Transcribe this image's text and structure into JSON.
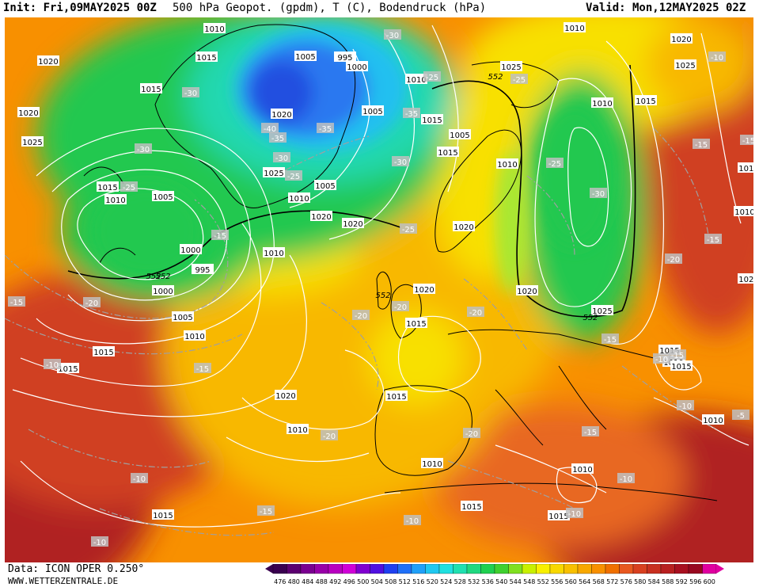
{
  "header": {
    "init": "Init: Fri,09MAY2025 00Z",
    "title": "500 hPa Geopot. (gpdm), T (C), Bodendruck (hPa)",
    "valid": "Valid: Mon,12MAY2025 02Z"
  },
  "footer": {
    "data_source": "Data: ICON OPER 0.250°",
    "website": "WWW.WETTERZENTRALE.DE"
  },
  "legend": {
    "values": [
      "476",
      "480",
      "484",
      "488",
      "492",
      "496",
      "500",
      "504",
      "508",
      "512",
      "516",
      "520",
      "524",
      "528",
      "532",
      "536",
      "540",
      "544",
      "548",
      "552",
      "556",
      "560",
      "564",
      "568",
      "572",
      "576",
      "580",
      "584",
      "588",
      "592",
      "596",
      "600"
    ],
    "colors": [
      "#3a0050",
      "#5c0070",
      "#7a0090",
      "#9800a8",
      "#b800c0",
      "#d000d8",
      "#8000d0",
      "#5010e0",
      "#2040f0",
      "#2070f8",
      "#20a0f8",
      "#20c8f0",
      "#20e0e0",
      "#20e0b0",
      "#20d880",
      "#20d050",
      "#40d030",
      "#80e020",
      "#c8f000",
      "#f8f000",
      "#f8d800",
      "#f8c000",
      "#f8a800",
      "#f89000",
      "#f07000",
      "#e85820",
      "#d84020",
      "#c83020",
      "#b82020",
      "#a81020",
      "#980820",
      "#e000a0"
    ]
  },
  "map": {
    "colors": {
      "deep_blue": "#2050e0",
      "blue": "#2a78f0",
      "cyan": "#20c0f0",
      "teal": "#20d8b0",
      "green": "#20c850",
      "lime": "#a8e830",
      "yellow": "#f8e000",
      "gold": "#f8b800",
      "orange": "#f89000",
      "dark_orange": "#e86820",
      "red": "#d04020",
      "dark_red": "#b02020"
    },
    "pressure_labels": [
      "1010",
      "1015",
      "1020",
      "1015",
      "1020",
      "1025",
      "1015",
      "1010",
      "1005",
      "1020",
      "1025",
      "1010",
      "1005",
      "995",
      "1000",
      "1005",
      "1010",
      "1015",
      "1020",
      "1025",
      "1010",
      "1005",
      "1000",
      "995",
      "1000",
      "1005",
      "1010",
      "1015",
      "1015",
      "1010",
      "1005",
      "1010",
      "1015",
      "1020",
      "1025",
      "1015",
      "1010",
      "1020",
      "1020",
      "1015",
      "1020",
      "1025",
      "1015",
      "1010",
      "1015",
      "1020",
      "1010",
      "1010",
      "1010",
      "1015",
      "1015",
      "1010",
      "1010",
      "1010",
      "1020",
      "1015",
      "1015",
      "1025"
    ],
    "temp_labels": [
      "-30",
      "-30",
      "-35",
      "-25",
      "-35",
      "-30",
      "-25",
      "-30",
      "-35",
      "-40",
      "-25",
      "-25",
      "-30",
      "-20",
      "-25",
      "-15",
      "-30",
      "-25",
      "-20",
      "-15",
      "-20",
      "-15",
      "-20",
      "-20",
      "-20",
      "-15",
      "-15",
      "-10",
      "-10",
      "-15",
      "-10",
      "-10",
      "-10",
      "-15",
      "-10",
      "-5",
      "-10",
      "-15",
      "-20",
      "-15",
      "-10",
      "-10",
      "-15"
    ],
    "contour_552": [
      "552",
      "552",
      "552",
      "552",
      "552"
    ]
  }
}
